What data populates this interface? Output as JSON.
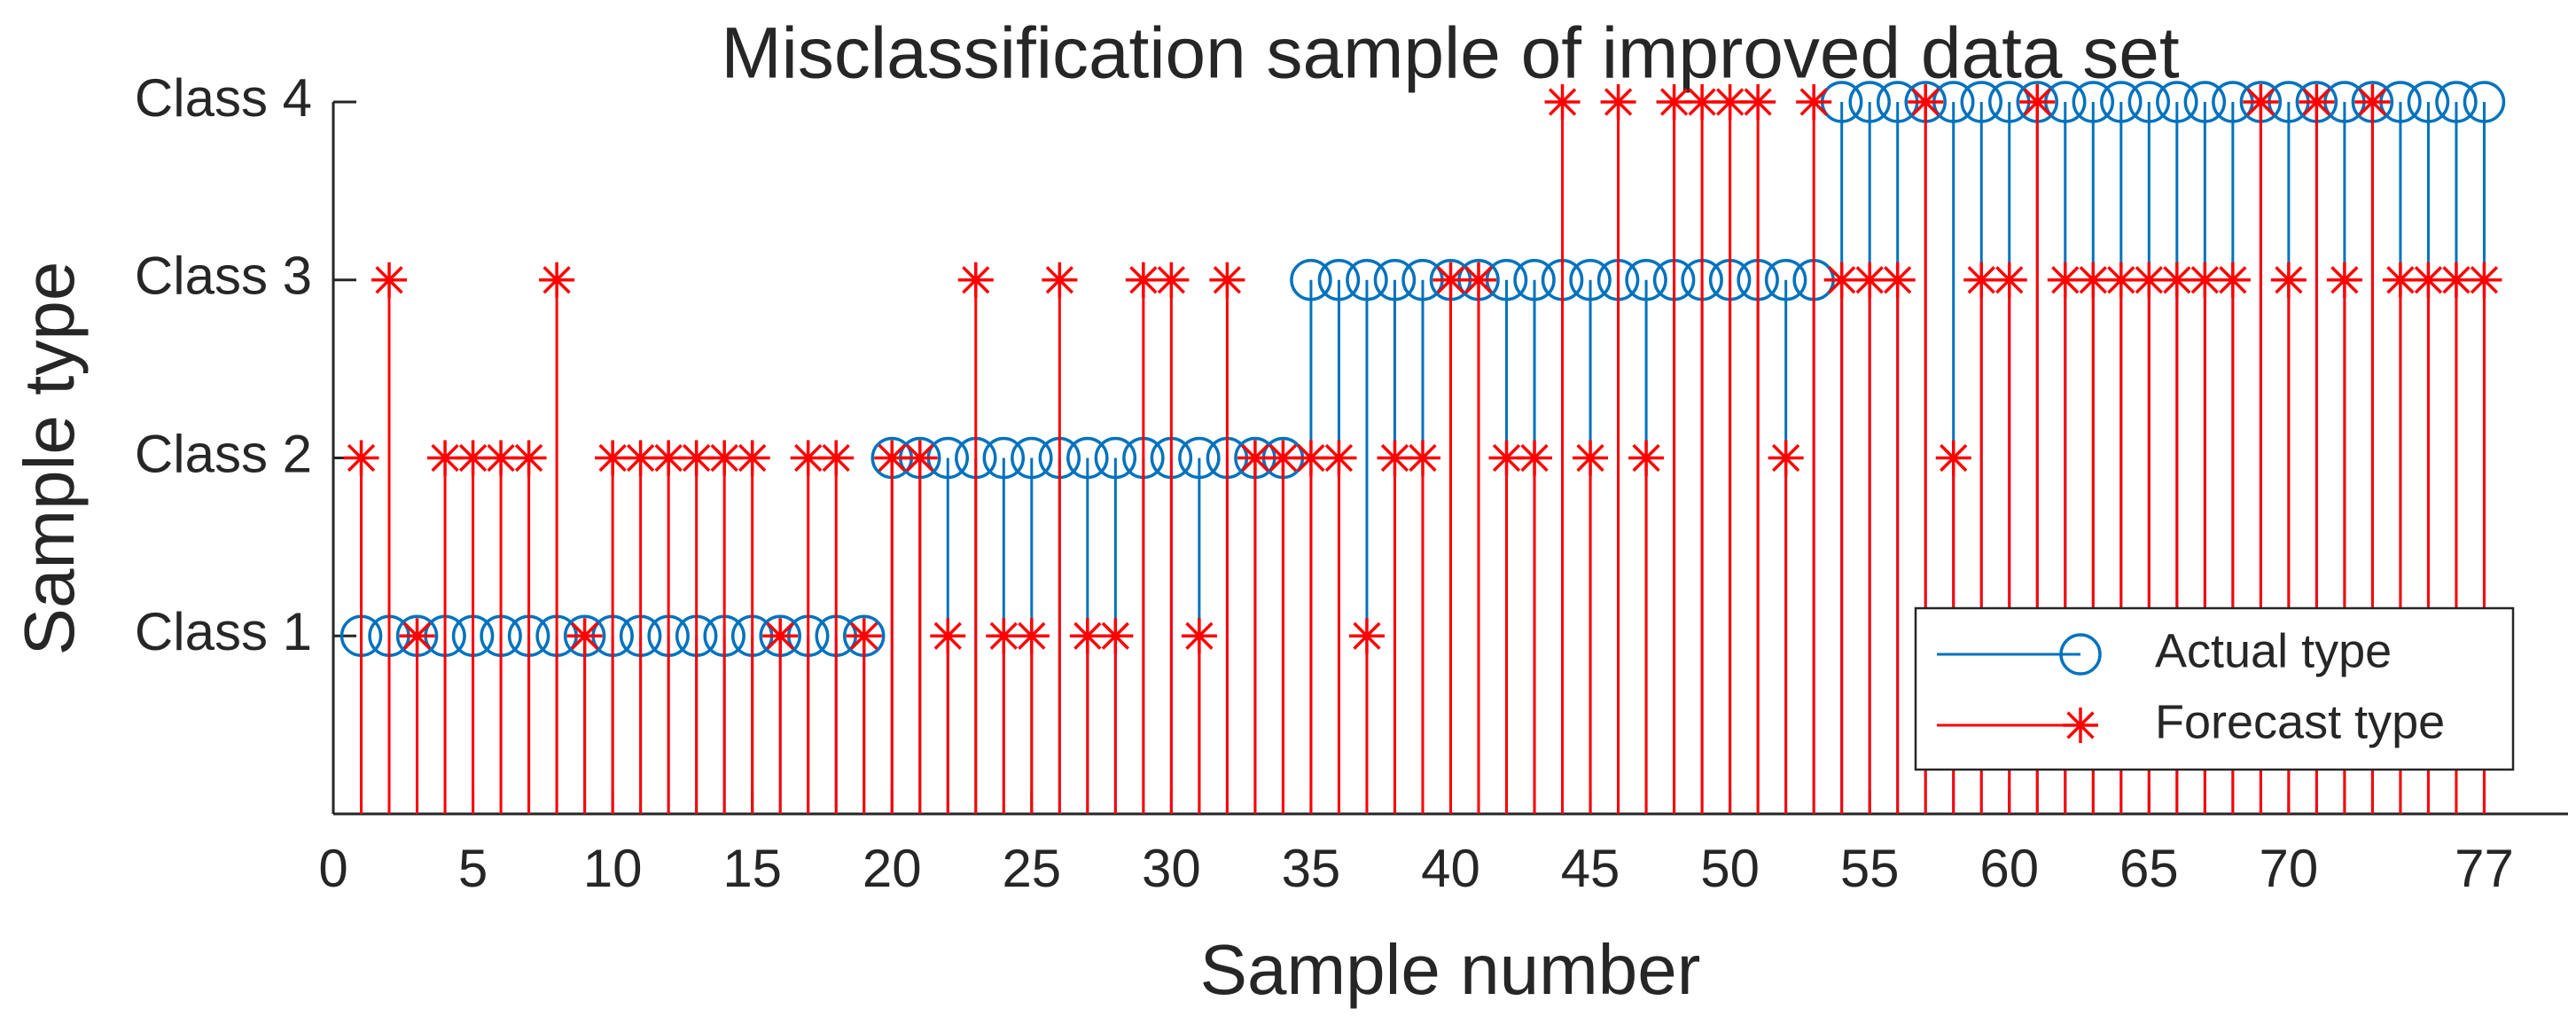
{
  "chart_data": {
    "type": "stem",
    "title": "Misclassification sample of improved data set",
    "xlabel": "Sample number",
    "ylabel": "Sample type",
    "x": [
      1,
      2,
      3,
      4,
      5,
      6,
      7,
      8,
      9,
      10,
      11,
      12,
      13,
      14,
      15,
      16,
      17,
      18,
      19,
      20,
      21,
      22,
      23,
      24,
      25,
      26,
      27,
      28,
      29,
      30,
      31,
      32,
      33,
      34,
      35,
      36,
      37,
      38,
      39,
      40,
      41,
      42,
      43,
      44,
      45,
      46,
      47,
      48,
      49,
      50,
      51,
      52,
      53,
      54,
      55,
      56,
      57,
      58,
      59,
      60,
      61,
      62,
      63,
      64,
      65,
      66,
      67,
      68,
      69,
      70,
      71,
      72,
      73,
      74,
      75,
      76,
      77
    ],
    "series": [
      {
        "name": "Actual type",
        "color": "#0072bd",
        "marker": "circle",
        "values": [
          1,
          1,
          1,
          1,
          1,
          1,
          1,
          1,
          1,
          1,
          1,
          1,
          1,
          1,
          1,
          1,
          1,
          1,
          1,
          2,
          2,
          2,
          2,
          2,
          2,
          2,
          2,
          2,
          2,
          2,
          2,
          2,
          2,
          2,
          3,
          3,
          3,
          3,
          3,
          3,
          3,
          3,
          3,
          3,
          3,
          3,
          3,
          3,
          3,
          3,
          3,
          3,
          3,
          4,
          4,
          4,
          4,
          4,
          4,
          4,
          4,
          4,
          4,
          4,
          4,
          4,
          4,
          4,
          4,
          4,
          4,
          4,
          4,
          4,
          4,
          4,
          4
        ]
      },
      {
        "name": "Forecast type",
        "color": "#ff0000",
        "marker": "star",
        "values": [
          2,
          3,
          1,
          2,
          2,
          2,
          2,
          3,
          1,
          2,
          2,
          2,
          2,
          2,
          2,
          1,
          2,
          2,
          1,
          2,
          2,
          1,
          3,
          1,
          1,
          3,
          1,
          1,
          3,
          3,
          1,
          3,
          2,
          2,
          2,
          2,
          1,
          2,
          2,
          3,
          3,
          2,
          2,
          4,
          2,
          4,
          2,
          4,
          4,
          4,
          4,
          2,
          4,
          3,
          3,
          3,
          4,
          2,
          3,
          3,
          4,
          3,
          3,
          3,
          3,
          3,
          3,
          3,
          4,
          3,
          4,
          3,
          4,
          3,
          3,
          3,
          3
        ]
      }
    ],
    "xlim": [
      0,
      80
    ],
    "xticks": [
      0,
      5,
      10,
      15,
      20,
      25,
      30,
      35,
      40,
      45,
      50,
      55,
      60,
      65,
      70,
      77
    ],
    "ylim": [
      0,
      4
    ],
    "yticks": [
      {
        "value": 1,
        "label": "Class 1"
      },
      {
        "value": 2,
        "label": "Class 2"
      },
      {
        "value": 3,
        "label": "Class 3"
      },
      {
        "value": 4,
        "label": "Class 4"
      }
    ],
    "legend": "lower right",
    "grid": false
  }
}
